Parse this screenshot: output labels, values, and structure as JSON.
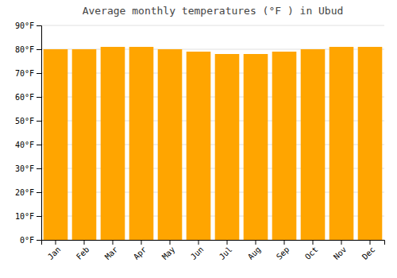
{
  "chart_data": {
    "type": "bar",
    "title": "Average monthly temperatures (°F ) in Ubud",
    "categories": [
      "Jan",
      "Feb",
      "Mar",
      "Apr",
      "May",
      "Jun",
      "Jul",
      "Aug",
      "Sep",
      "Oct",
      "Nov",
      "Dec"
    ],
    "values": [
      80,
      80,
      81,
      81,
      80,
      79,
      78,
      78,
      79,
      80,
      81,
      81
    ],
    "color": "#FFA500",
    "ylim": [
      0,
      90
    ],
    "yticks": [
      {
        "value": 0,
        "label": "0°F"
      },
      {
        "value": 10,
        "label": "10°F"
      },
      {
        "value": 20,
        "label": "20°F"
      },
      {
        "value": 30,
        "label": "30°F"
      },
      {
        "value": 40,
        "label": "40°F"
      },
      {
        "value": 50,
        "label": "50°F"
      },
      {
        "value": 60,
        "label": "60°F"
      },
      {
        "value": 70,
        "label": "70°F"
      },
      {
        "value": 80,
        "label": "80°F"
      },
      {
        "value": 90,
        "label": "90°F"
      }
    ],
    "grid": true
  }
}
